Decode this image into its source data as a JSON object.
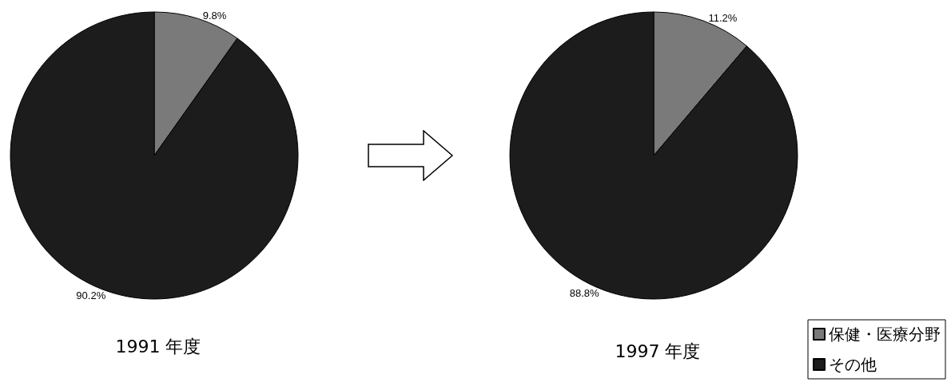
{
  "chart_data": [
    {
      "type": "pie",
      "title": "1991 年度",
      "categories": [
        null,
        null
      ],
      "values": [
        9.8,
        90.2
      ],
      "colors": [
        "#7a7a7a",
        "#1c1c1c"
      ],
      "value_labels": [
        "9.8%",
        "90.2%"
      ],
      "legend": false
    },
    {
      "type": "pie",
      "title": "1997 年度",
      "categories": [
        "保健・医療分野",
        "その他"
      ],
      "values": [
        11.2,
        88.8
      ],
      "colors": [
        "#7a7a7a",
        "#1c1c1c"
      ],
      "value_labels": [
        "11.2%",
        "88.8%"
      ],
      "legend": "bottom right"
    }
  ]
}
